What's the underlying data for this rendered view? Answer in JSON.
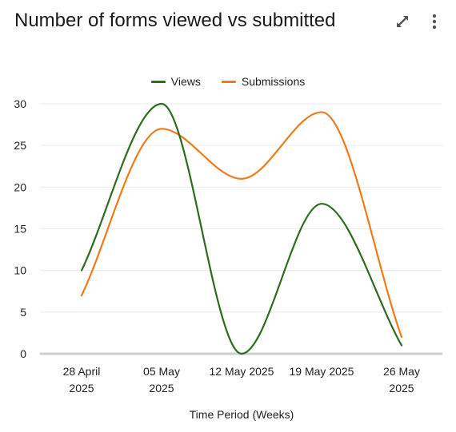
{
  "header": {
    "title": "Number of forms viewed vs submitted",
    "expand_icon": "expand-diagonal-icon",
    "menu_icon": "more-vertical-icon"
  },
  "colors": {
    "views": "#2e6b1f",
    "submissions": "#f07a1a",
    "grid": "#ececec",
    "axis": "#cfcfcf"
  },
  "chart_data": {
    "type": "line",
    "title": "Number of forms viewed vs submitted",
    "xlabel": "Time Period (Weeks)",
    "ylabel": "",
    "ylim": [
      0,
      30
    ],
    "yticks": [
      0,
      5,
      10,
      15,
      20,
      25,
      30
    ],
    "categories": [
      [
        "28 April",
        "2025"
      ],
      [
        "05 May",
        "2025"
      ],
      [
        "12 May 2025"
      ],
      [
        "19 May 2025"
      ],
      [
        "26 May",
        "2025"
      ]
    ],
    "legend_position": "top-center",
    "grid": true,
    "smooth": true,
    "series": [
      {
        "name": "Views",
        "color": "#2e6b1f",
        "values": [
          10,
          30,
          0,
          18,
          1
        ]
      },
      {
        "name": "Submissions",
        "color": "#f07a1a",
        "values": [
          7,
          27,
          21,
          29,
          2
        ]
      }
    ]
  }
}
